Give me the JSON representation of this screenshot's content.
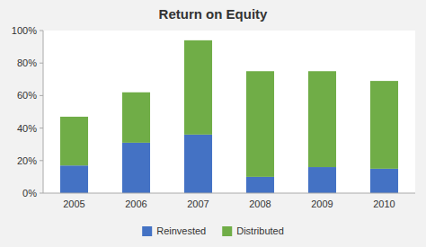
{
  "chart_data": {
    "type": "bar",
    "stacked": true,
    "title": "Return on Equity",
    "categories": [
      "2005",
      "2006",
      "2007",
      "2008",
      "2009",
      "2010"
    ],
    "series": [
      {
        "name": "Reinvested",
        "color": "#4472C4",
        "values": [
          17,
          31,
          36,
          10,
          16,
          15
        ]
      },
      {
        "name": "Distributed",
        "color": "#70AD47",
        "values": [
          30,
          31,
          58,
          65,
          59,
          54
        ]
      }
    ],
    "ylim": [
      0,
      100
    ],
    "yticks": [
      {
        "value": 0,
        "label": "0%"
      },
      {
        "value": 20,
        "label": "20%"
      },
      {
        "value": 40,
        "label": "40%"
      },
      {
        "value": 60,
        "label": "60%"
      },
      {
        "value": 80,
        "label": "80%"
      },
      {
        "value": 100,
        "label": "100%"
      }
    ],
    "grid": false,
    "legend": "bottom"
  }
}
